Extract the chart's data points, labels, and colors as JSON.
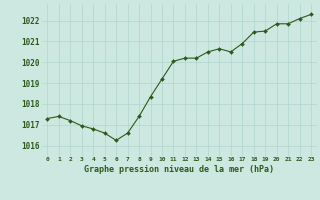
{
  "x": [
    0,
    1,
    2,
    3,
    4,
    5,
    6,
    7,
    8,
    9,
    10,
    11,
    12,
    13,
    14,
    15,
    16,
    17,
    18,
    19,
    20,
    21,
    22,
    23
  ],
  "y": [
    1017.3,
    1017.4,
    1017.2,
    1016.95,
    1016.8,
    1016.6,
    1016.25,
    1016.6,
    1017.4,
    1018.35,
    1019.2,
    1020.05,
    1020.2,
    1020.2,
    1020.5,
    1020.65,
    1020.5,
    1020.9,
    1021.45,
    1021.5,
    1021.85,
    1021.85,
    1022.1,
    1022.3
  ],
  "line_color": "#2d5a1b",
  "marker_color": "#2d5a1b",
  "bg_color": "#cce8e0",
  "grid_color": "#b0d4cc",
  "xlabel": "Graphe pression niveau de la mer (hPa)",
  "xlabel_color": "#2d5a1b",
  "tick_color": "#2d5a1b",
  "ylim": [
    1015.5,
    1022.8
  ],
  "yticks": [
    1016,
    1017,
    1018,
    1019,
    1020,
    1021,
    1022
  ],
  "xtick_labels": [
    "0",
    "1",
    "2",
    "3",
    "4",
    "5",
    "6",
    "7",
    "8",
    "9",
    "10",
    "11",
    "12",
    "13",
    "14",
    "15",
    "16",
    "17",
    "18",
    "19",
    "20",
    "21",
    "22",
    "23"
  ]
}
